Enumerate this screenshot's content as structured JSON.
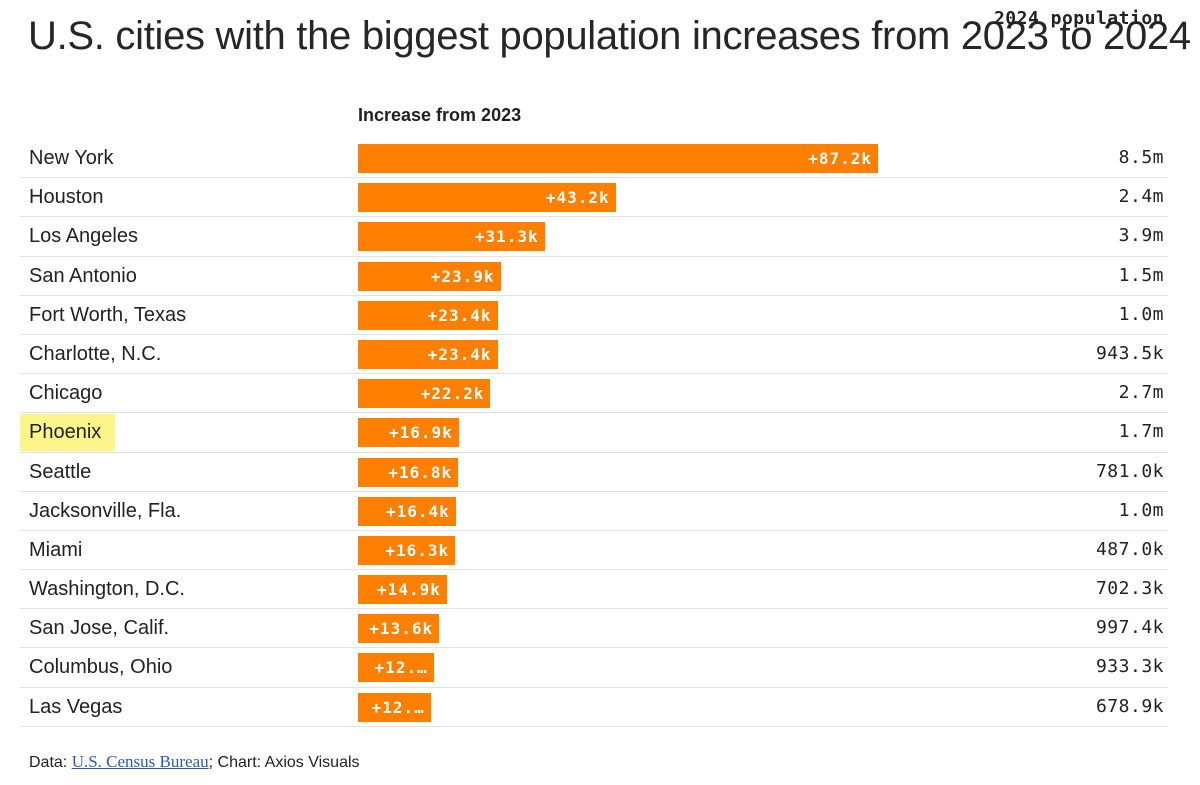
{
  "title": "U.S. cities with the biggest population increases from 2023 to 2024",
  "colors": {
    "bar": "#ff7f00",
    "highlight": "#fdf58a",
    "link": "#2a5db0"
  },
  "chart_data": {
    "type": "bar",
    "orientation": "horizontal",
    "title": "U.S. cities with the biggest population increases from 2023 to 2024",
    "xlabel": "Increase from 2023",
    "secondary_column": "2024 population",
    "xlim": [
      0,
      87.2
    ],
    "categories": [
      "New York",
      "Houston",
      "Los Angeles",
      "San Antonio",
      "Fort Worth, Texas",
      "Charlotte, N.C.",
      "Chicago",
      "Phoenix",
      "Seattle",
      "Jacksonville, Fla.",
      "Miami",
      "Washington, D.C.",
      "San Jose, Calif.",
      "Columbus, Ohio",
      "Las Vegas"
    ],
    "values": [
      87.2,
      43.2,
      31.3,
      23.9,
      23.4,
      23.4,
      22.2,
      16.9,
      16.8,
      16.4,
      16.3,
      14.9,
      13.6,
      12.7,
      12.2
    ],
    "value_labels": [
      "+87.2k",
      "+43.2k",
      "+31.3k",
      "+23.9k",
      "+23.4k",
      "+23.4k",
      "+22.2k",
      "+16.9k",
      "+16.8k",
      "+16.4k",
      "+16.3k",
      "+14.9k",
      "+13.6k",
      "+12.…",
      "+12.…"
    ],
    "populations": [
      "8.5m",
      "2.4m",
      "3.9m",
      "1.5m",
      "1.0m",
      "943.5k",
      "2.7m",
      "1.7m",
      "781.0k",
      "1.0m",
      "487.0k",
      "702.3k",
      "997.4k",
      "933.3k",
      "678.9k"
    ],
    "highlighted": "Phoenix",
    "units": "thousands"
  },
  "headers": {
    "increase": "Increase from 2023",
    "population": "2024 population"
  },
  "footer": {
    "prefix": "Data: ",
    "source_link": "U.S. Census Bureau",
    "suffix": "; Chart: Axios Visuals"
  }
}
